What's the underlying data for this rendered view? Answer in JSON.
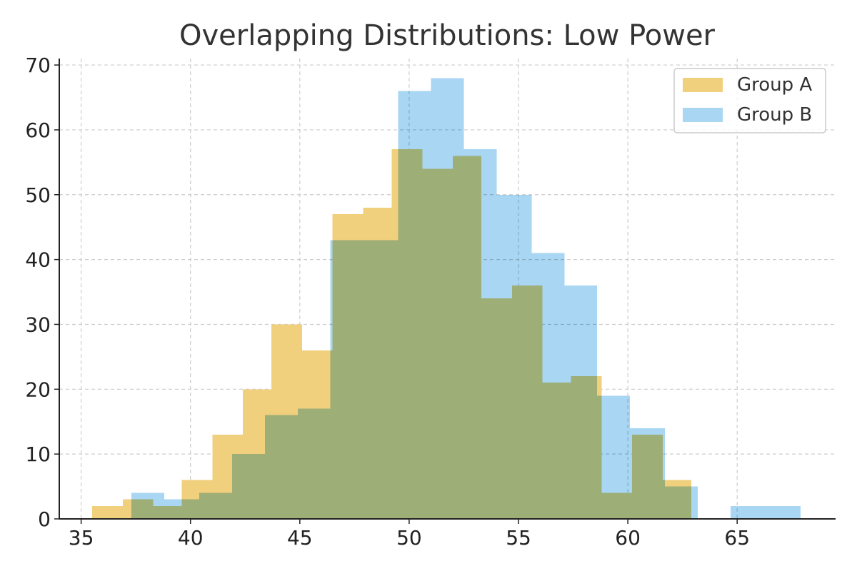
{
  "chart_data": {
    "type": "bar",
    "subtype": "overlapping-histogram",
    "title": "Overlapping Distributions: Low Power",
    "xlabel": "",
    "ylabel": "",
    "xlim": [
      34.0,
      69.5
    ],
    "ylim": [
      0,
      71
    ],
    "xticks": [
      35,
      40,
      45,
      50,
      55,
      60,
      65
    ],
    "yticks": [
      0,
      10,
      20,
      30,
      40,
      50,
      60,
      70
    ],
    "grid": true,
    "legend_position": "top-right",
    "series": [
      {
        "name": "Group A",
        "color": "#f0cf7d",
        "bins": [
          {
            "x0": 35.5,
            "x1": 36.9,
            "count": 2
          },
          {
            "x0": 36.9,
            "x1": 38.3,
            "count": 3
          },
          {
            "x0": 38.3,
            "x1": 39.6,
            "count": 2
          },
          {
            "x0": 39.6,
            "x1": 41.0,
            "count": 6
          },
          {
            "x0": 41.0,
            "x1": 42.4,
            "count": 13
          },
          {
            "x0": 42.4,
            "x1": 43.7,
            "count": 20
          },
          {
            "x0": 43.7,
            "x1": 45.1,
            "count": 30
          },
          {
            "x0": 45.1,
            "x1": 46.5,
            "count": 26
          },
          {
            "x0": 46.5,
            "x1": 47.9,
            "count": 47
          },
          {
            "x0": 47.9,
            "x1": 49.2,
            "count": 48
          },
          {
            "x0": 49.2,
            "x1": 50.6,
            "count": 57
          },
          {
            "x0": 50.6,
            "x1": 52.0,
            "count": 54
          },
          {
            "x0": 52.0,
            "x1": 53.3,
            "count": 56
          },
          {
            "x0": 53.3,
            "x1": 54.7,
            "count": 34
          },
          {
            "x0": 54.7,
            "x1": 56.1,
            "count": 36
          },
          {
            "x0": 56.1,
            "x1": 57.4,
            "count": 21
          },
          {
            "x0": 57.4,
            "x1": 58.8,
            "count": 22
          },
          {
            "x0": 58.8,
            "x1": 60.2,
            "count": 4
          },
          {
            "x0": 60.2,
            "x1": 61.6,
            "count": 13
          },
          {
            "x0": 61.6,
            "x1": 62.9,
            "count": 6
          }
        ]
      },
      {
        "name": "Group B",
        "color": "#a8d6f3",
        "bins": [
          {
            "x0": 37.3,
            "x1": 38.8,
            "count": 4
          },
          {
            "x0": 38.8,
            "x1": 40.4,
            "count": 3
          },
          {
            "x0": 40.4,
            "x1": 41.9,
            "count": 4
          },
          {
            "x0": 41.9,
            "x1": 43.4,
            "count": 10
          },
          {
            "x0": 43.4,
            "x1": 44.9,
            "count": 16
          },
          {
            "x0": 44.9,
            "x1": 46.4,
            "count": 17
          },
          {
            "x0": 46.4,
            "x1": 48.0,
            "count": 43
          },
          {
            "x0": 48.0,
            "x1": 49.5,
            "count": 43
          },
          {
            "x0": 49.5,
            "x1": 51.0,
            "count": 66
          },
          {
            "x0": 51.0,
            "x1": 52.5,
            "count": 68
          },
          {
            "x0": 52.5,
            "x1": 54.0,
            "count": 57
          },
          {
            "x0": 54.0,
            "x1": 55.6,
            "count": 50
          },
          {
            "x0": 55.6,
            "x1": 57.1,
            "count": 41
          },
          {
            "x0": 57.1,
            "x1": 58.6,
            "count": 36
          },
          {
            "x0": 58.6,
            "x1": 60.1,
            "count": 19
          },
          {
            "x0": 60.1,
            "x1": 61.7,
            "count": 14
          },
          {
            "x0": 61.7,
            "x1": 63.2,
            "count": 5
          },
          {
            "x0": 63.2,
            "x1": 64.7,
            "count": 0
          },
          {
            "x0": 64.7,
            "x1": 66.2,
            "count": 2
          },
          {
            "x0": 66.2,
            "x1": 67.9,
            "count": 2
          }
        ]
      }
    ]
  },
  "style": {
    "overlap_color": "#a4bfb2",
    "grid_color": "#cccccc",
    "axis_color": "#222222",
    "legend_border_color": "#cccccc"
  }
}
